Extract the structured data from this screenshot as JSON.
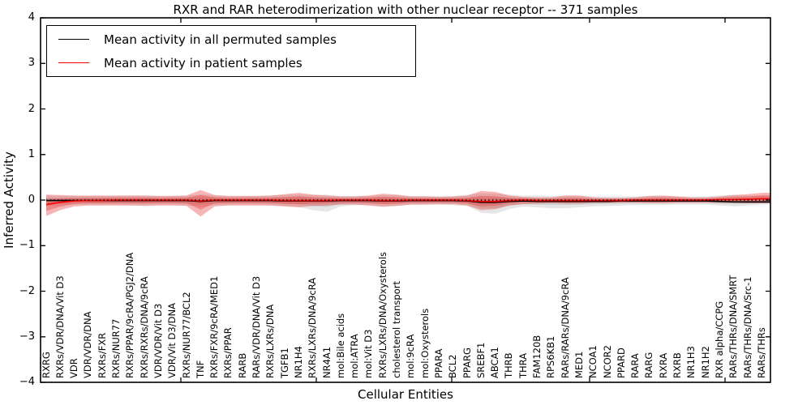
{
  "legend": {
    "items": [
      {
        "label": "Mean activity in all permuted samples",
        "color": "#000000"
      },
      {
        "label": "Mean activity in patient samples",
        "color": "#ff0000"
      }
    ]
  },
  "chart_data": {
    "type": "line",
    "title": "RXR and RAR heterodimerization with other nuclear receptor -- 371 samples",
    "xlabel": "Cellular Entities",
    "ylabel": "Inferred Activity",
    "ylim": [
      -4,
      4
    ],
    "y_ticks": [
      "4",
      "3",
      "2",
      "1",
      "0",
      "−1",
      "−2",
      "−3",
      "−4"
    ],
    "grid": false,
    "legend_position": "upper left",
    "x_tick_rotation": 90,
    "categories": [
      "RXRG",
      "RXRs/VDR/DNA/Vit D3",
      "VDR",
      "VDR/VDR/DNA",
      "RXRs/FXR",
      "RXRs/NUR77",
      "RXRs/PPAR/9cRA/PGJ2/DNA",
      "RXRs/RXRs/DNA/9cRA",
      "VDR/VDR/Vit D3",
      "VDR/Vit D3/DNA",
      "RXRs/NUR77/BCL2",
      "TNF",
      "RXRs/FXR/9cRA/MED1",
      "RXRs/PPAR",
      "RARB",
      "RARs/VDR/DNA/Vit D3",
      "RXRs/LXRs/DNA",
      "TGFB1",
      "NR1H4",
      "RXRs/LXRs/DNA/9cRA",
      "NR4A1",
      "mol:Bile acids",
      "mol:ATRA",
      "mol:Vit D3",
      "RXRs/LXRs/DNA/Oxysterols",
      "cholesterol transport",
      "mol:9cRA",
      "mol:Oxysterols",
      "PPARA",
      "BCL2",
      "PPARG",
      "SREBF1",
      "ABCA1",
      "THRB",
      "THRA",
      "FAM120B",
      "RPS6KB1",
      "RARs/RARs/DNA/9cRA",
      "MED1",
      "NCOA1",
      "NCOR2",
      "PPARD",
      "RARA",
      "RARG",
      "RXRA",
      "RXRB",
      "NR1H3",
      "NR1H2",
      "RXR alpha/CCPG",
      "RARs/THRs/DNA/SMRT",
      "RARs/THRs/DNA/Src-1",
      "RARs/THRs"
    ],
    "series": [
      {
        "name": "Mean activity in all permuted samples",
        "color": "#000000",
        "values": [
          -0.01,
          -0.01,
          -0.01,
          -0.01,
          -0.01,
          -0.01,
          -0.01,
          -0.01,
          -0.01,
          -0.01,
          -0.01,
          -0.03,
          -0.01,
          -0.01,
          -0.01,
          -0.01,
          -0.01,
          -0.02,
          -0.02,
          -0.02,
          -0.02,
          -0.01,
          -0.01,
          -0.01,
          -0.02,
          -0.02,
          -0.01,
          -0.01,
          -0.01,
          -0.01,
          -0.02,
          -0.05,
          -0.05,
          -0.03,
          -0.02,
          -0.03,
          -0.03,
          -0.03,
          -0.03,
          -0.03,
          -0.03,
          -0.02,
          -0.02,
          -0.02,
          -0.02,
          -0.02,
          -0.02,
          -0.02,
          -0.03,
          -0.04,
          -0.04,
          -0.04
        ]
      },
      {
        "name": "Mean activity in patient samples",
        "color": "#ff0000",
        "values": [
          -0.1,
          -0.05,
          -0.02,
          -0.01,
          -0.01,
          0,
          0,
          0,
          0,
          0,
          0,
          -0.02,
          0,
          0,
          0,
          0,
          0,
          -0.01,
          -0.01,
          -0.01,
          -0.01,
          0,
          0,
          0,
          -0.01,
          -0.01,
          0,
          0,
          0,
          0,
          -0.01,
          -0.03,
          -0.03,
          -0.01,
          0,
          -0.01,
          -0.01,
          -0.01,
          -0.01,
          -0.01,
          -0.01,
          -0.01,
          0,
          0,
          0,
          0,
          0,
          0,
          0.01,
          0.01,
          0.02,
          0.03
        ]
      }
    ],
    "bands": {
      "permuted_hi": [
        0.1,
        0.09,
        0.09,
        0.09,
        0.09,
        0.09,
        0.1,
        0.1,
        0.09,
        0.09,
        0.1,
        0.12,
        0.1,
        0.09,
        0.09,
        0.09,
        0.1,
        0.11,
        0.12,
        0.11,
        0.12,
        0.09,
        0.09,
        0.09,
        0.11,
        0.1,
        0.09,
        0.09,
        0.09,
        0.09,
        0.11,
        0.15,
        0.14,
        0.12,
        0.1,
        0.1,
        0.09,
        0.09,
        0.09,
        0.08,
        0.08,
        0.08,
        0.08,
        0.09,
        0.09,
        0.08,
        0.08,
        0.08,
        0.1,
        0.11,
        0.1,
        0.1
      ],
      "permuted_lo": [
        -0.13,
        -0.11,
        -0.1,
        -0.1,
        -0.1,
        -0.1,
        -0.11,
        -0.11,
        -0.1,
        -0.1,
        -0.11,
        -0.14,
        -0.11,
        -0.1,
        -0.1,
        -0.1,
        -0.11,
        -0.13,
        -0.15,
        -0.22,
        -0.26,
        -0.14,
        -0.11,
        -0.11,
        -0.13,
        -0.12,
        -0.1,
        -0.1,
        -0.1,
        -0.11,
        -0.13,
        -0.28,
        -0.3,
        -0.2,
        -0.14,
        -0.16,
        -0.18,
        -0.18,
        -0.16,
        -0.14,
        -0.13,
        -0.12,
        -0.11,
        -0.11,
        -0.11,
        -0.1,
        -0.1,
        -0.1,
        -0.12,
        -0.14,
        -0.12,
        -0.1
      ],
      "patient_hi": [
        0.12,
        0.11,
        0.1,
        0.1,
        0.1,
        0.1,
        0.1,
        0.1,
        0.09,
        0.09,
        0.1,
        0.22,
        0.11,
        0.09,
        0.09,
        0.09,
        0.1,
        0.13,
        0.16,
        0.12,
        0.1,
        0.08,
        0.08,
        0.1,
        0.14,
        0.12,
        0.08,
        0.08,
        0.07,
        0.08,
        0.1,
        0.2,
        0.18,
        0.1,
        0.07,
        0.06,
        0.06,
        0.1,
        0.1,
        0.06,
        0.05,
        0.05,
        0.06,
        0.09,
        0.1,
        0.08,
        0.06,
        0.06,
        0.08,
        0.11,
        0.13,
        0.16
      ],
      "patient_lo": [
        -0.35,
        -0.22,
        -0.14,
        -0.12,
        -0.12,
        -0.12,
        -0.12,
        -0.13,
        -0.12,
        -0.12,
        -0.13,
        -0.36,
        -0.14,
        -0.12,
        -0.12,
        -0.12,
        -0.12,
        -0.14,
        -0.16,
        -0.13,
        -0.12,
        -0.1,
        -0.1,
        -0.12,
        -0.15,
        -0.13,
        -0.1,
        -0.1,
        -0.09,
        -0.09,
        -0.12,
        -0.22,
        -0.2,
        -0.12,
        -0.09,
        -0.08,
        -0.07,
        -0.08,
        -0.08,
        -0.06,
        -0.06,
        -0.06,
        -0.06,
        -0.07,
        -0.07,
        -0.06,
        -0.06,
        -0.06,
        -0.06,
        -0.06,
        -0.07,
        -0.07
      ],
      "inner_band_factor": 0.55
    },
    "colors": {
      "permuted_line": "#000000",
      "patient_line": "#ff0000",
      "permuted_band": "#808080",
      "patient_band": "#e62e2e",
      "zero_line": "#000000"
    }
  }
}
